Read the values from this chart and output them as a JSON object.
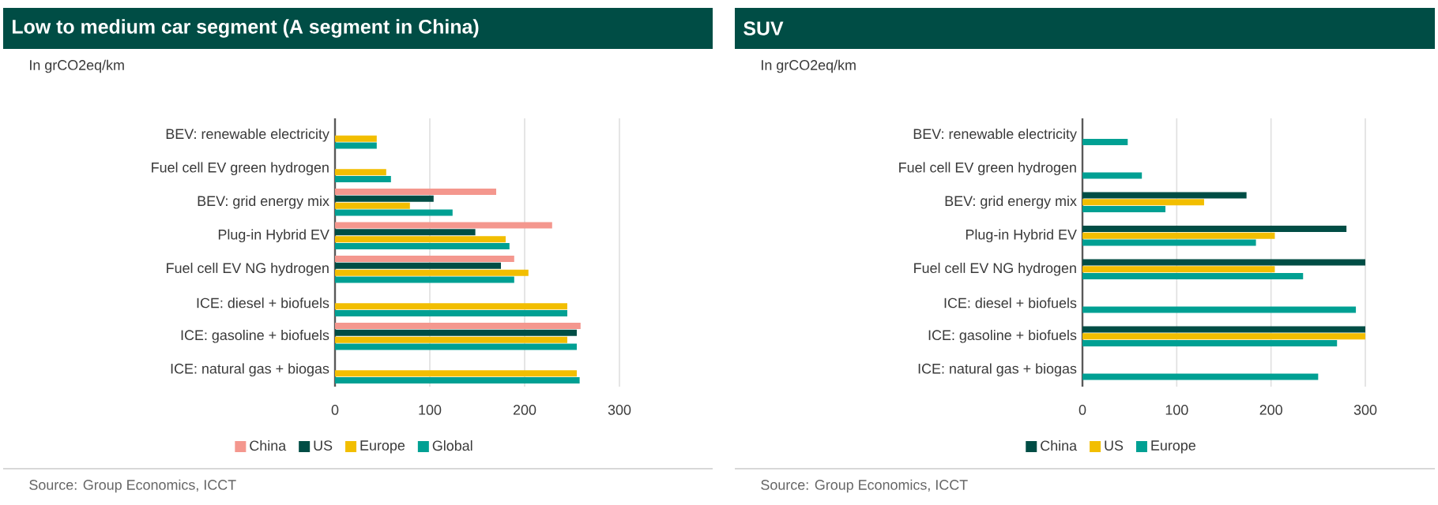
{
  "chart_data": [
    {
      "type": "bar",
      "orientation": "horizontal",
      "title": "Low to medium car segment (A segment in China)",
      "subtitle": "In grCO2eq/km",
      "categories": [
        "BEV: renewable electricity",
        "Fuel cell EV green hydrogen",
        "BEV: grid energy mix",
        "Plug-in Hybrid EV",
        "Fuel cell EV NG hydrogen",
        "ICE: diesel + biofuels",
        "ICE: gasoline + biofuels",
        "ICE: natural gas + biogas"
      ],
      "series": [
        {
          "name": "China",
          "color": "#f4978e",
          "values": [
            null,
            null,
            170,
            229,
            189,
            null,
            259,
            null
          ]
        },
        {
          "name": "US",
          "color": "#004d45",
          "values": [
            null,
            null,
            104,
            148,
            175,
            null,
            255,
            null
          ]
        },
        {
          "name": "Europe",
          "color": "#f2be00",
          "values": [
            44,
            54,
            79,
            180,
            204,
            245,
            245,
            255
          ]
        },
        {
          "name": "Global",
          "color": "#00a093",
          "values": [
            44,
            59,
            124,
            184,
            189,
            245,
            255,
            258
          ]
        }
      ],
      "xlim": [
        0,
        300
      ],
      "xticks": [
        0,
        100,
        200,
        300
      ],
      "grid": "x",
      "legend": "bottom",
      "annotations": [
        "Source: Group Economics, ICCT"
      ]
    },
    {
      "type": "bar",
      "orientation": "horizontal",
      "title": "SUV",
      "subtitle": "In grCO2eq/km",
      "categories": [
        "BEV: renewable electricity",
        "Fuel cell EV green hydrogen",
        "BEV: grid energy mix",
        "Plug-in Hybrid EV",
        "Fuel cell EV NG hydrogen",
        "ICE: diesel + biofuels",
        "ICE: gasoline + biofuels",
        "ICE: natural gas + biogas"
      ],
      "series": [
        {
          "name": "China",
          "color": "#004d45",
          "values": [
            null,
            null,
            174,
            280,
            300,
            null,
            300,
            null
          ]
        },
        {
          "name": "US",
          "color": "#f2be00",
          "values": [
            null,
            null,
            129,
            204,
            204,
            null,
            300,
            null
          ]
        },
        {
          "name": "Europe",
          "color": "#00a093",
          "values": [
            48,
            63,
            88,
            184,
            234,
            290,
            270,
            250
          ]
        }
      ],
      "xlim": [
        0,
        300
      ],
      "xticks": [
        0,
        100,
        200,
        300
      ],
      "grid": "x",
      "legend": "bottom",
      "annotations": [
        "Source: Group Economics, ICCT"
      ]
    }
  ]
}
